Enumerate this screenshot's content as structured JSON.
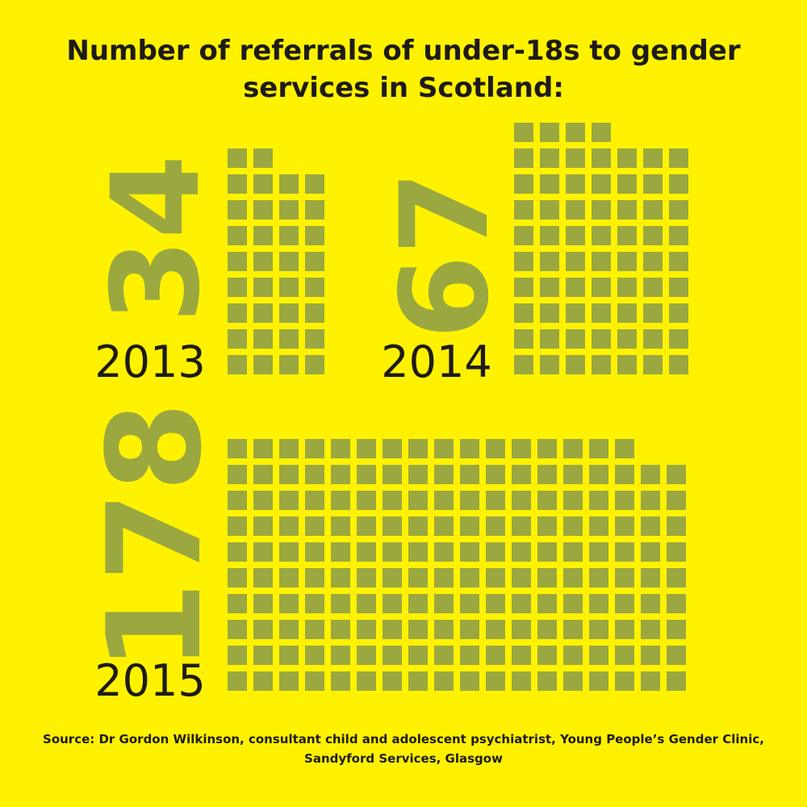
{
  "colors": {
    "background": "#FFF200",
    "square": "#9BA83F",
    "text": "#1E1B17"
  },
  "chart_data": {
    "type": "waffle",
    "title": "Number of referrals of under-18s to gender services in Scotland:",
    "unit": "referrals (1 square = 1 referral)",
    "series": [
      {
        "year": "2013",
        "count_label": "34",
        "value": 34
      },
      {
        "year": "2014",
        "count_label": "67",
        "value": 67
      },
      {
        "year": "2015",
        "count_label": "178",
        "value": 178
      }
    ]
  },
  "source": "Source: Dr Gordon Wilkinson, consultant child and adolescent psychiatrist, Young People’s Gender Clinic, Sandyford Services, Glasgow"
}
